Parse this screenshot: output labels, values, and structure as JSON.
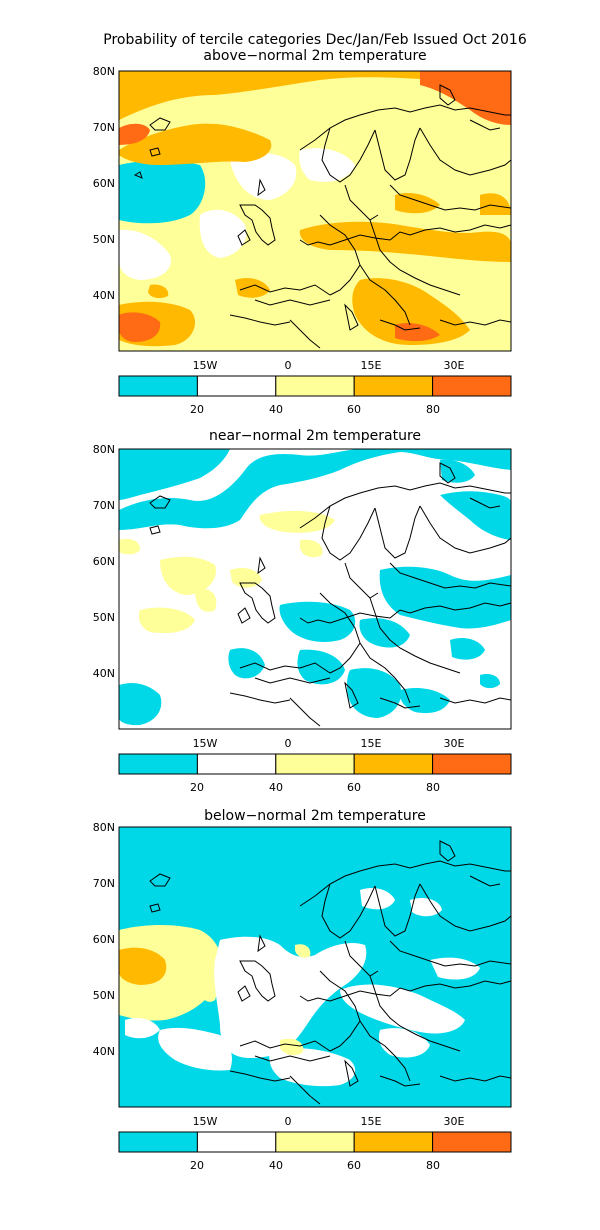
{
  "header": {
    "title": "Probability of tercile categories Dec/Jan/Feb Issued Oct 2016"
  },
  "colors": {
    "c0_20": "#00d8e8",
    "c20_40": "#ffffff",
    "c40_60": "#ffff99",
    "c60_80": "#ffb900",
    "c80_100": "#ff6a14"
  },
  "axes": {
    "lat_labels": [
      "80N",
      "70N",
      "60N",
      "50N",
      "40N"
    ],
    "lon_labels": [
      "15W",
      "0",
      "15E",
      "30E"
    ]
  },
  "colorbar": {
    "tick_labels": [
      "20",
      "40",
      "60",
      "80"
    ]
  },
  "panels": [
    {
      "id": "above",
      "title": "above−normal 2m temperature"
    },
    {
      "id": "near",
      "title": "near−normal 2m temperature"
    },
    {
      "id": "below",
      "title": "below−normal 2m temperature"
    }
  ]
}
